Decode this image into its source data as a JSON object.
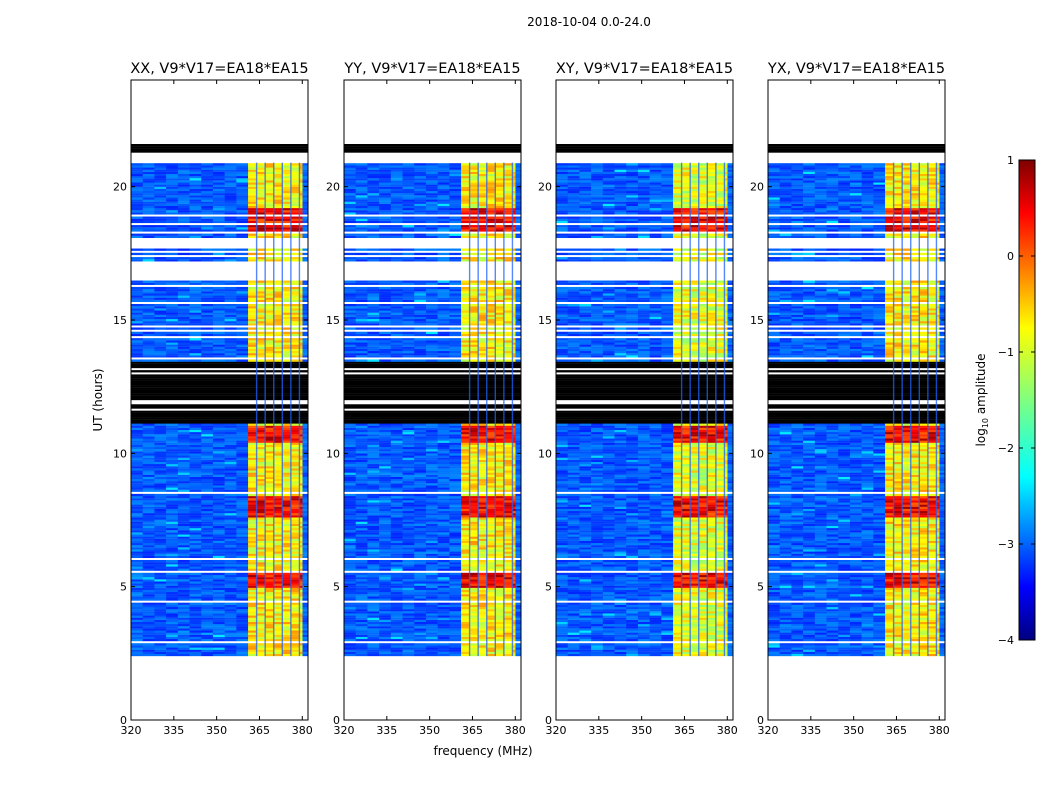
{
  "figure": {
    "suptitle": "2018-10-04 0.0-24.0",
    "xlabel": "frequency (MHz)",
    "ylabel": "UT (hours)"
  },
  "colorbar": {
    "label_main": "log",
    "label_sub": "10",
    "label_rest": " amplitude",
    "range": [
      -4,
      1
    ],
    "ticks": [
      1,
      0,
      -1,
      -2,
      -3,
      -4
    ],
    "tick_labels": [
      "1",
      "0",
      "−1",
      "−2",
      "−3",
      "−4"
    ],
    "colors": [
      "#00007f",
      "#0000ff",
      "#007fff",
      "#00ffff",
      "#7fff7f",
      "#ffff00",
      "#ff7f00",
      "#ff0000",
      "#7f0000"
    ]
  },
  "chart_data": {
    "type": "heatmap",
    "title": "2018-10-04 0.0-24.0",
    "xlabel": "frequency (MHz)",
    "ylabel": "UT (hours)",
    "xlim": [
      320,
      382
    ],
    "ylim": [
      0,
      24
    ],
    "xticks": [
      320,
      335,
      350,
      365,
      380
    ],
    "yticks": [
      0,
      5,
      10,
      15,
      20
    ],
    "colorbar_label": "log10 amplitude",
    "colorbar_range": [
      -4,
      1
    ],
    "data_ut_range": [
      2.4,
      20.9
    ],
    "flagged_black_ut": [
      [
        21.3,
        21.6
      ],
      [
        11.1,
        13.4
      ]
    ],
    "rfi_band_mhz": [
      361,
      380
    ],
    "bright_intervals_ut": [
      [
        10.4,
        11.0
      ],
      [
        7.6,
        8.4
      ],
      [
        5.0,
        5.6
      ],
      [
        18.3,
        19.2
      ]
    ],
    "panels": [
      {
        "title": "XX, V9*V17=EA18*EA15"
      },
      {
        "title": "YY, V9*V17=EA18*EA15"
      },
      {
        "title": "XY, V9*V17=EA18*EA15"
      },
      {
        "title": "YX, V9*V17=EA18*EA15"
      }
    ]
  }
}
